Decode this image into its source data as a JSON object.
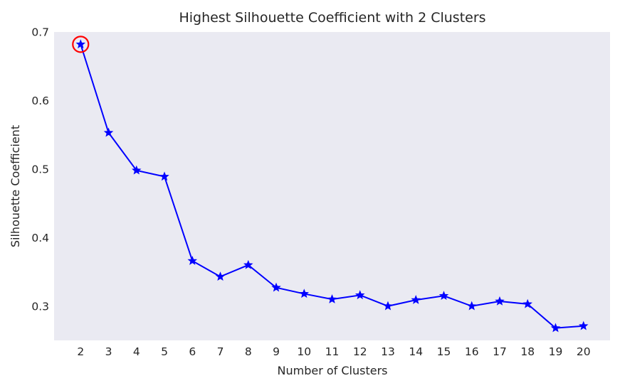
{
  "chart_data": {
    "type": "line",
    "title": "Highest Silhouette Coefficient with 2 Clusters",
    "xlabel": "Number of Clusters",
    "ylabel": "Silhouette Coefficient",
    "x": [
      2,
      3,
      4,
      5,
      6,
      7,
      8,
      9,
      10,
      11,
      12,
      13,
      14,
      15,
      16,
      17,
      18,
      19,
      20
    ],
    "series": [
      {
        "values": [
          0.682,
          0.553,
          0.498,
          0.489,
          0.366,
          0.343,
          0.36,
          0.327,
          0.318,
          0.31,
          0.316,
          0.3,
          0.309,
          0.315,
          0.3,
          0.307,
          0.303,
          0.268,
          0.271
        ],
        "color": "#0000ff",
        "marker": "star"
      }
    ],
    "xlim": [
      1.05,
      20.95
    ],
    "ylim": [
      0.25,
      0.7
    ],
    "yticks": [
      0.3,
      0.4,
      0.5,
      0.6,
      0.7
    ],
    "ytick_labels": [
      "0.3",
      "0.4",
      "0.5",
      "0.6",
      "0.7"
    ],
    "xticks": [
      2,
      3,
      4,
      5,
      6,
      7,
      8,
      9,
      10,
      11,
      12,
      13,
      14,
      15,
      16,
      17,
      18,
      19,
      20
    ],
    "xtick_labels": [
      "2",
      "3",
      "4",
      "5",
      "6",
      "7",
      "8",
      "9",
      "10",
      "11",
      "12",
      "13",
      "14",
      "15",
      "16",
      "17",
      "18",
      "19",
      "20"
    ],
    "highlight": {
      "x": 2,
      "y": 0.682,
      "color": "#ff0000"
    },
    "grid": false,
    "background": "#eaeaf2"
  }
}
